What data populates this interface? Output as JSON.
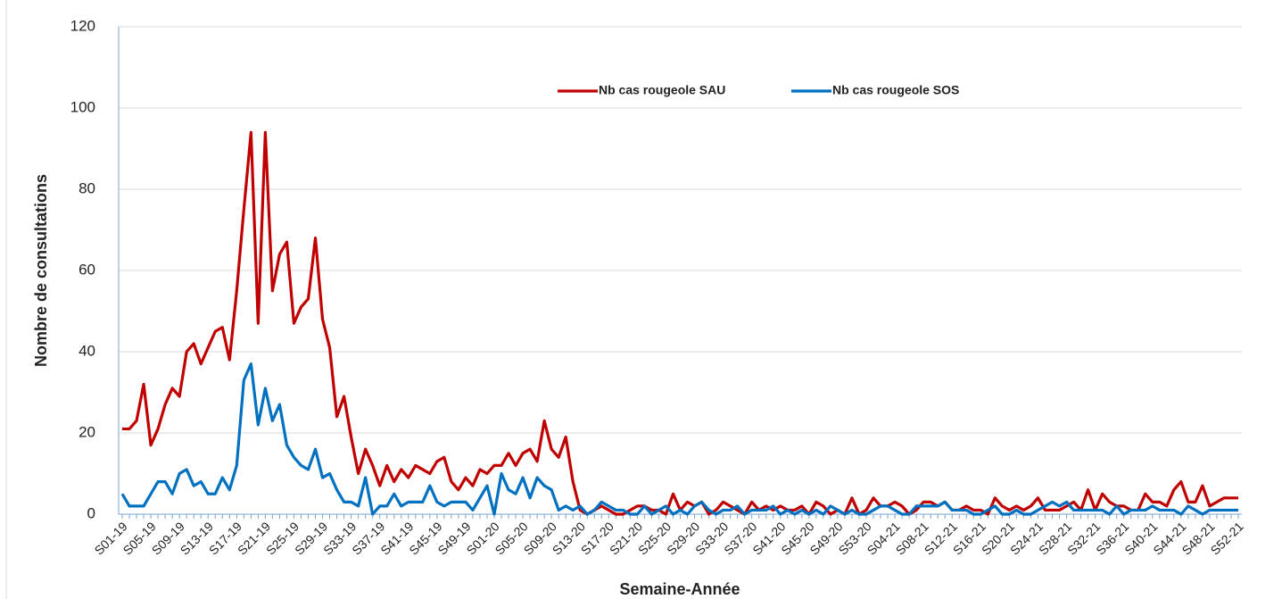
{
  "chart_data": {
    "type": "line",
    "categories": [
      "S01-19",
      null,
      null,
      null,
      "S05-19",
      null,
      null,
      null,
      "S09-19",
      null,
      null,
      null,
      "S13-19",
      null,
      null,
      null,
      "S17-19",
      null,
      null,
      null,
      "S21-19",
      null,
      null,
      null,
      "S25-19",
      null,
      null,
      null,
      "S29-19",
      null,
      null,
      null,
      "S33-19",
      null,
      null,
      null,
      "S37-19",
      null,
      null,
      null,
      "S41-19",
      null,
      null,
      null,
      "S45-19",
      null,
      null,
      null,
      "S49-19",
      null,
      null,
      null,
      "S01-20",
      null,
      null,
      null,
      "S05-20",
      null,
      null,
      null,
      "S09-20",
      null,
      null,
      null,
      "S13-20",
      null,
      null,
      null,
      "S17-20",
      null,
      null,
      null,
      "S21-20",
      null,
      null,
      null,
      "S25-20",
      null,
      null,
      null,
      "S29-20",
      null,
      null,
      null,
      "S33-20",
      null,
      null,
      null,
      "S37-20",
      null,
      null,
      null,
      "S41-20",
      null,
      null,
      null,
      "S45-20",
      null,
      null,
      null,
      "S49-20",
      null,
      null,
      null,
      "S53-20",
      null,
      null,
      null,
      "S04-21",
      null,
      null,
      null,
      "S08-21",
      null,
      null,
      null,
      "S12-21",
      null,
      null,
      null,
      "S16-21",
      null,
      null,
      null,
      "S20-21",
      null,
      null,
      null,
      "S24-21",
      null,
      null,
      null,
      "S28-21",
      null,
      null,
      null,
      "S32-21",
      null,
      null,
      null,
      "S36-21",
      null,
      null,
      null,
      "S40-21",
      null,
      null,
      null,
      "S44-21",
      null,
      null,
      null,
      "S48-21",
      null,
      null,
      null,
      "S52-21"
    ],
    "series": [
      {
        "name": "Nb cas rougeole SAU",
        "color": "#c00000",
        "values": [
          21,
          21,
          23,
          32,
          17,
          21,
          27,
          31,
          29,
          40,
          42,
          37,
          41,
          45,
          46,
          38,
          55,
          75,
          94,
          47,
          94,
          55,
          64,
          67,
          47,
          51,
          53,
          68,
          48,
          41,
          24,
          29,
          19,
          10,
          16,
          12,
          7,
          12,
          8,
          11,
          9,
          12,
          11,
          10,
          13,
          14,
          8,
          6,
          9,
          7,
          11,
          10,
          12,
          12,
          15,
          12,
          15,
          16,
          13,
          23,
          16,
          14,
          19,
          8,
          1,
          0,
          1,
          2,
          1,
          0,
          0,
          1,
          2,
          2,
          1,
          1,
          0,
          5,
          1,
          3,
          2,
          3,
          0,
          1,
          3,
          2,
          1,
          0,
          3,
          1,
          2,
          1,
          2,
          1,
          1,
          2,
          0,
          3,
          2,
          0,
          1,
          0,
          4,
          0,
          1,
          4,
          2,
          2,
          3,
          2,
          0,
          1,
          3,
          3,
          2,
          3,
          1,
          1,
          2,
          1,
          1,
          0,
          4,
          2,
          1,
          2,
          1,
          2,
          4,
          1,
          1,
          1,
          2,
          3,
          1,
          6,
          1,
          5,
          3,
          2,
          2,
          1,
          1,
          5,
          3,
          3,
          2,
          6,
          8,
          3,
          3,
          7,
          2,
          3,
          4,
          4,
          4
        ]
      },
      {
        "name": "Nb cas rougeole SOS",
        "color": "#0070c0",
        "values": [
          5,
          2,
          2,
          2,
          5,
          8,
          8,
          5,
          10,
          11,
          7,
          8,
          5,
          5,
          9,
          6,
          12,
          33,
          37,
          22,
          31,
          23,
          27,
          17,
          14,
          12,
          11,
          16,
          9,
          10,
          6,
          3,
          3,
          2,
          9,
          0,
          2,
          2,
          5,
          2,
          3,
          3,
          3,
          7,
          3,
          2,
          3,
          3,
          3,
          1,
          4,
          7,
          0,
          10,
          6,
          5,
          9,
          4,
          9,
          7,
          6,
          1,
          2,
          1,
          2,
          0,
          1,
          3,
          2,
          1,
          1,
          0,
          0,
          2,
          0,
          1,
          2,
          0,
          1,
          0,
          2,
          3,
          1,
          0,
          1,
          1,
          2,
          0,
          1,
          1,
          1,
          2,
          0,
          1,
          0,
          1,
          0,
          1,
          0,
          2,
          1,
          0,
          1,
          0,
          0,
          1,
          2,
          2,
          1,
          0,
          0,
          2,
          2,
          2,
          2,
          3,
          1,
          1,
          1,
          0,
          0,
          1,
          2,
          0,
          0,
          1,
          0,
          0,
          1,
          2,
          3,
          2,
          3,
          1,
          1,
          1,
          1,
          1,
          0,
          2,
          0,
          1,
          1,
          1,
          2,
          1,
          1,
          1,
          0,
          2,
          1,
          0,
          1,
          1,
          1,
          1,
          1
        ]
      }
    ],
    "x_label": "Semaine-Année",
    "y_label": "Nombre de consultations",
    "ylim": [
      0,
      120
    ],
    "yticks": [
      0,
      20,
      40,
      60,
      80,
      100,
      120
    ],
    "grid": true,
    "legend": "top"
  }
}
